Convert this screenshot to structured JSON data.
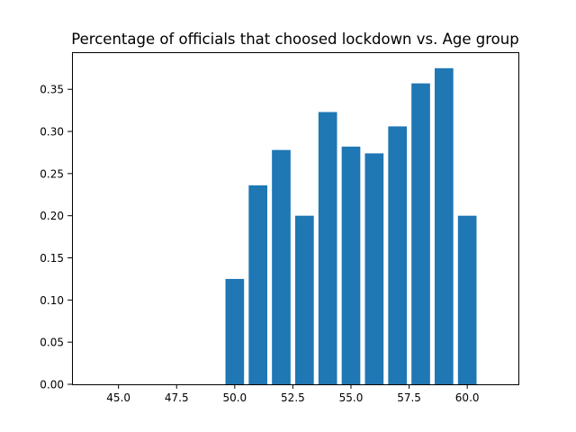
{
  "chart_data": {
    "type": "bar",
    "title": "Percentage of officials that choosed lockdown vs. Age group",
    "xlabel": "",
    "ylabel": "",
    "x": [
      50,
      51,
      52,
      53,
      54,
      55,
      56,
      57,
      58,
      59,
      60
    ],
    "values": [
      0.125,
      0.236,
      0.278,
      0.2,
      0.323,
      0.282,
      0.274,
      0.306,
      0.357,
      0.375,
      0.2
    ],
    "bar_width": 0.8,
    "xlim": [
      43.0,
      62.2
    ],
    "ylim": [
      0.0,
      0.394
    ],
    "x_ticks": [
      45.0,
      47.5,
      50.0,
      52.5,
      55.0,
      57.5,
      60.0
    ],
    "x_tick_labels": [
      "45.0",
      "47.5",
      "50.0",
      "52.5",
      "55.0",
      "57.5",
      "60.0"
    ],
    "y_ticks": [
      0.0,
      0.05,
      0.1,
      0.15,
      0.2,
      0.25,
      0.3,
      0.35
    ],
    "y_tick_labels": [
      "0.00",
      "0.05",
      "0.10",
      "0.15",
      "0.20",
      "0.25",
      "0.30",
      "0.35"
    ],
    "grid": false,
    "legend": "none",
    "bar_color": "#1f77b4"
  }
}
